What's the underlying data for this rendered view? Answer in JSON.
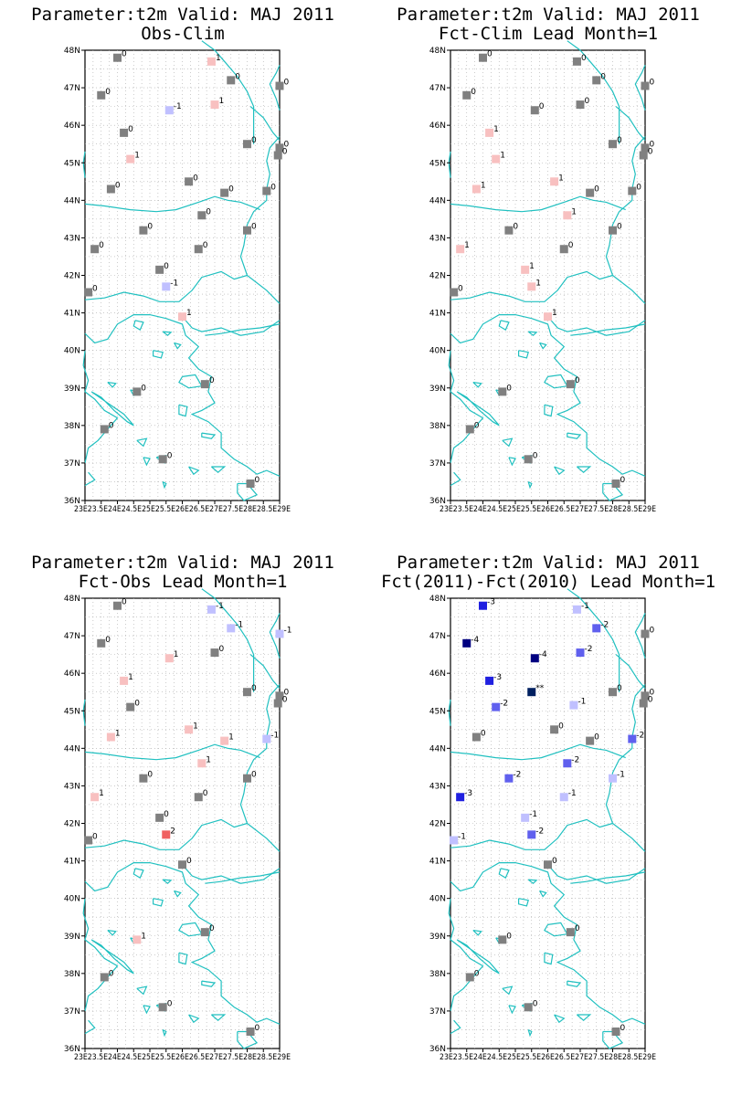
{
  "panels": [
    {
      "title_line1": "Parameter:t2m Valid: MAJ 2011",
      "title_line2": "Obs-Clim",
      "stations": [
        {
          "lon": 24.0,
          "lat": 47.8,
          "v": "0"
        },
        {
          "lon": 26.9,
          "lat": 47.7,
          "v": "1"
        },
        {
          "lon": 27.5,
          "lat": 47.2,
          "v": "0"
        },
        {
          "lon": 29.0,
          "lat": 47.05,
          "v": "0"
        },
        {
          "lon": 23.5,
          "lat": 46.8,
          "v": "0"
        },
        {
          "lon": 25.6,
          "lat": 46.4,
          "v": "-1"
        },
        {
          "lon": 27.0,
          "lat": 46.55,
          "v": "1"
        },
        {
          "lon": 24.2,
          "lat": 45.8,
          "v": "0"
        },
        {
          "lon": 28.0,
          "lat": 45.5,
          "v": "0"
        },
        {
          "lon": 29.0,
          "lat": 45.4,
          "v": "0"
        },
        {
          "lon": 28.95,
          "lat": 45.2,
          "v": "0"
        },
        {
          "lon": 24.4,
          "lat": 45.1,
          "v": "1"
        },
        {
          "lon": 26.2,
          "lat": 44.5,
          "v": "0"
        },
        {
          "lon": 23.8,
          "lat": 44.3,
          "v": "0"
        },
        {
          "lon": 27.3,
          "lat": 44.2,
          "v": "0"
        },
        {
          "lon": 28.6,
          "lat": 44.25,
          "v": "0"
        },
        {
          "lon": 26.6,
          "lat": 43.6,
          "v": "0"
        },
        {
          "lon": 24.8,
          "lat": 43.2,
          "v": "0"
        },
        {
          "lon": 28.0,
          "lat": 43.2,
          "v": "0"
        },
        {
          "lon": 23.3,
          "lat": 42.7,
          "v": "0"
        },
        {
          "lon": 26.5,
          "lat": 42.7,
          "v": "0"
        },
        {
          "lon": 25.3,
          "lat": 42.15,
          "v": "0"
        },
        {
          "lon": 25.5,
          "lat": 41.7,
          "v": "-1"
        },
        {
          "lon": 23.1,
          "lat": 41.55,
          "v": "0"
        },
        {
          "lon": 26.0,
          "lat": 40.9,
          "v": "1"
        },
        {
          "lon": 24.6,
          "lat": 38.9,
          "v": "0"
        },
        {
          "lon": 26.7,
          "lat": 39.1,
          "v": "0"
        },
        {
          "lon": 23.6,
          "lat": 37.9,
          "v": "0"
        },
        {
          "lon": 25.4,
          "lat": 37.1,
          "v": "0"
        },
        {
          "lon": 28.1,
          "lat": 36.45,
          "v": "0"
        }
      ]
    },
    {
      "title_line1": "Parameter:t2m Valid: MAJ 2011",
      "title_line2": "Fct-Clim Lead Month=1",
      "stations": [
        {
          "lon": 24.0,
          "lat": 47.8,
          "v": "0"
        },
        {
          "lon": 26.9,
          "lat": 47.7,
          "v": "0"
        },
        {
          "lon": 27.5,
          "lat": 47.2,
          "v": "0"
        },
        {
          "lon": 29.0,
          "lat": 47.05,
          "v": "0"
        },
        {
          "lon": 23.5,
          "lat": 46.8,
          "v": "0"
        },
        {
          "lon": 25.6,
          "lat": 46.4,
          "v": "0"
        },
        {
          "lon": 27.0,
          "lat": 46.55,
          "v": "0"
        },
        {
          "lon": 24.2,
          "lat": 45.8,
          "v": "1"
        },
        {
          "lon": 28.0,
          "lat": 45.5,
          "v": "0"
        },
        {
          "lon": 29.0,
          "lat": 45.4,
          "v": "0"
        },
        {
          "lon": 28.95,
          "lat": 45.2,
          "v": "0"
        },
        {
          "lon": 24.4,
          "lat": 45.1,
          "v": "1"
        },
        {
          "lon": 26.2,
          "lat": 44.5,
          "v": "1"
        },
        {
          "lon": 23.8,
          "lat": 44.3,
          "v": "1"
        },
        {
          "lon": 27.3,
          "lat": 44.2,
          "v": "0"
        },
        {
          "lon": 28.6,
          "lat": 44.25,
          "v": "0"
        },
        {
          "lon": 26.6,
          "lat": 43.6,
          "v": "1"
        },
        {
          "lon": 24.8,
          "lat": 43.2,
          "v": "0"
        },
        {
          "lon": 28.0,
          "lat": 43.2,
          "v": "0"
        },
        {
          "lon": 23.3,
          "lat": 42.7,
          "v": "1"
        },
        {
          "lon": 26.5,
          "lat": 42.7,
          "v": "0"
        },
        {
          "lon": 25.3,
          "lat": 42.15,
          "v": "1"
        },
        {
          "lon": 25.5,
          "lat": 41.7,
          "v": "1"
        },
        {
          "lon": 23.1,
          "lat": 41.55,
          "v": "0"
        },
        {
          "lon": 26.0,
          "lat": 40.9,
          "v": "1"
        },
        {
          "lon": 24.6,
          "lat": 38.9,
          "v": "0"
        },
        {
          "lon": 26.7,
          "lat": 39.1,
          "v": "0"
        },
        {
          "lon": 23.6,
          "lat": 37.9,
          "v": "0"
        },
        {
          "lon": 25.4,
          "lat": 37.1,
          "v": "0"
        },
        {
          "lon": 28.1,
          "lat": 36.45,
          "v": "0"
        }
      ]
    },
    {
      "title_line1": "Parameter:t2m Valid: MAJ 2011",
      "title_line2": "Fct-Obs Lead Month=1",
      "stations": [
        {
          "lon": 24.0,
          "lat": 47.8,
          "v": "0"
        },
        {
          "lon": 26.9,
          "lat": 47.7,
          "v": "-1"
        },
        {
          "lon": 27.5,
          "lat": 47.2,
          "v": "-1"
        },
        {
          "lon": 29.0,
          "lat": 47.05,
          "v": "-1"
        },
        {
          "lon": 23.5,
          "lat": 46.8,
          "v": "0"
        },
        {
          "lon": 25.6,
          "lat": 46.4,
          "v": "1"
        },
        {
          "lon": 27.0,
          "lat": 46.55,
          "v": "0"
        },
        {
          "lon": 24.2,
          "lat": 45.8,
          "v": "1"
        },
        {
          "lon": 28.0,
          "lat": 45.5,
          "v": "0"
        },
        {
          "lon": 29.0,
          "lat": 45.4,
          "v": "0"
        },
        {
          "lon": 28.95,
          "lat": 45.2,
          "v": "0"
        },
        {
          "lon": 24.4,
          "lat": 45.1,
          "v": "0"
        },
        {
          "lon": 26.2,
          "lat": 44.5,
          "v": "1"
        },
        {
          "lon": 23.8,
          "lat": 44.3,
          "v": "1"
        },
        {
          "lon": 27.3,
          "lat": 44.2,
          "v": "1"
        },
        {
          "lon": 28.6,
          "lat": 44.25,
          "v": "-1"
        },
        {
          "lon": 26.6,
          "lat": 43.6,
          "v": "1"
        },
        {
          "lon": 24.8,
          "lat": 43.2,
          "v": "0"
        },
        {
          "lon": 28.0,
          "lat": 43.2,
          "v": "0"
        },
        {
          "lon": 23.3,
          "lat": 42.7,
          "v": "1"
        },
        {
          "lon": 26.5,
          "lat": 42.7,
          "v": "0"
        },
        {
          "lon": 25.3,
          "lat": 42.15,
          "v": "0"
        },
        {
          "lon": 25.5,
          "lat": 41.7,
          "v": "2"
        },
        {
          "lon": 23.1,
          "lat": 41.55,
          "v": "0"
        },
        {
          "lon": 26.0,
          "lat": 40.9,
          "v": "0"
        },
        {
          "lon": 24.6,
          "lat": 38.9,
          "v": "1"
        },
        {
          "lon": 26.7,
          "lat": 39.1,
          "v": "0"
        },
        {
          "lon": 23.6,
          "lat": 37.9,
          "v": "0"
        },
        {
          "lon": 25.4,
          "lat": 37.1,
          "v": "0"
        },
        {
          "lon": 28.1,
          "lat": 36.45,
          "v": "0"
        }
      ]
    },
    {
      "title_line1": "Parameter:t2m Valid: MAJ 2011",
      "title_line2": "Fct(2011)-Fct(2010) Lead Month=1",
      "stations": [
        {
          "lon": 24.0,
          "lat": 47.8,
          "v": "-3"
        },
        {
          "lon": 26.9,
          "lat": 47.7,
          "v": "-1"
        },
        {
          "lon": 27.5,
          "lat": 47.2,
          "v": "-2"
        },
        {
          "lon": 29.0,
          "lat": 47.05,
          "v": "0"
        },
        {
          "lon": 23.5,
          "lat": 46.8,
          "v": "-4"
        },
        {
          "lon": 25.6,
          "lat": 46.4,
          "v": "-4"
        },
        {
          "lon": 27.0,
          "lat": 46.55,
          "v": "-2"
        },
        {
          "lon": 24.2,
          "lat": 45.8,
          "v": "-3"
        },
        {
          "lon": 25.5,
          "lat": 45.5,
          "v": "**"
        },
        {
          "lon": 28.0,
          "lat": 45.5,
          "v": "0"
        },
        {
          "lon": 29.0,
          "lat": 45.4,
          "v": "0"
        },
        {
          "lon": 28.95,
          "lat": 45.2,
          "v": "0"
        },
        {
          "lon": 24.4,
          "lat": 45.1,
          "v": "-2"
        },
        {
          "lon": 26.8,
          "lat": 45.15,
          "v": "-1"
        },
        {
          "lon": 26.2,
          "lat": 44.5,
          "v": "0"
        },
        {
          "lon": 23.8,
          "lat": 44.3,
          "v": "0"
        },
        {
          "lon": 27.3,
          "lat": 44.2,
          "v": "0"
        },
        {
          "lon": 28.6,
          "lat": 44.25,
          "v": "-2"
        },
        {
          "lon": 26.6,
          "lat": 43.6,
          "v": "-2"
        },
        {
          "lon": 24.8,
          "lat": 43.2,
          "v": "-2"
        },
        {
          "lon": 28.0,
          "lat": 43.2,
          "v": "-1"
        },
        {
          "lon": 23.3,
          "lat": 42.7,
          "v": "-3"
        },
        {
          "lon": 26.5,
          "lat": 42.7,
          "v": "-1"
        },
        {
          "lon": 25.3,
          "lat": 42.15,
          "v": "-1"
        },
        {
          "lon": 25.5,
          "lat": 41.7,
          "v": "-2"
        },
        {
          "lon": 23.1,
          "lat": 41.55,
          "v": "-1"
        },
        {
          "lon": 26.0,
          "lat": 40.9,
          "v": "0"
        },
        {
          "lon": 24.6,
          "lat": 38.9,
          "v": "0"
        },
        {
          "lon": 26.7,
          "lat": 39.1,
          "v": "0"
        },
        {
          "lon": 23.6,
          "lat": 37.9,
          "v": "0"
        },
        {
          "lon": 25.4,
          "lat": 37.1,
          "v": "0"
        },
        {
          "lon": 28.1,
          "lat": 36.45,
          "v": "0"
        }
      ]
    }
  ],
  "axes": {
    "lat_labels": [
      "36N",
      "37N",
      "38N",
      "39N",
      "40N",
      "41N",
      "42N",
      "43N",
      "44N",
      "45N",
      "46N",
      "47N",
      "48N"
    ],
    "lat_values": [
      36,
      37,
      38,
      39,
      40,
      41,
      42,
      43,
      44,
      45,
      46,
      47,
      48
    ],
    "lon_labels": [
      "23E",
      "23.5E",
      "24E",
      "24.5E",
      "25E",
      "25.5E",
      "26E",
      "26.5E",
      "27E",
      "27.5E",
      "28E",
      "28.5E",
      "29E"
    ],
    "lon_values": [
      23,
      23.5,
      24,
      24.5,
      25,
      25.5,
      26,
      26.5,
      27,
      27.5,
      28,
      28.5,
      29
    ],
    "lon_range": [
      23,
      29
    ],
    "lat_range": [
      36,
      48
    ],
    "lon_axis_text": "23E23.5E24E24.5E25E25.5E26E26.5E27E27.5E28E28.5E29E",
    "coastline_color": "#20c0c0",
    "grid": true
  },
  "colors": {
    "-4": "#000080",
    "-3": "#2020e0",
    "-2": "#6060ee",
    "-1": "#c0c0ff",
    "0": "#808080",
    "1": "#f8c0c0",
    "2": "#f06060",
    "**": "#002060"
  }
}
